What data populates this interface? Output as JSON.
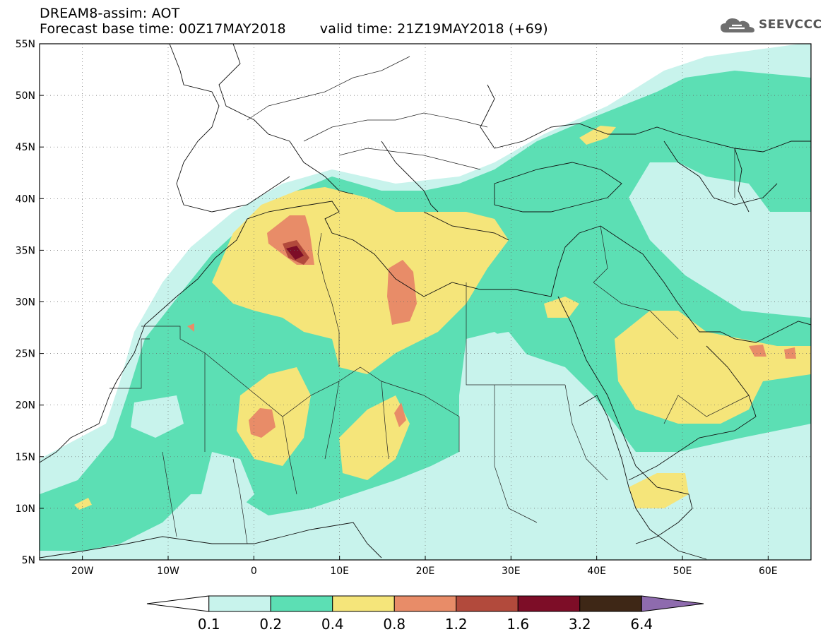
{
  "header": {
    "title": "DREAM8-assim: AOT",
    "base_time": "Forecast base time: 00Z17MAY2018",
    "valid_time": "valid time: 21Z19MAY2018 (+69)"
  },
  "logo": {
    "text": "SEEVCCC",
    "icon": "cloud-icon"
  },
  "map": {
    "lat_labels": [
      "55N",
      "50N",
      "45N",
      "40N",
      "35N",
      "30N",
      "25N",
      "20N",
      "15N",
      "10N",
      "5N"
    ],
    "lon_labels": [
      "20W",
      "10W",
      "0",
      "10E",
      "20E",
      "30E",
      "40E",
      "50E",
      "60E"
    ],
    "lon_range": [
      -25,
      65
    ],
    "lat_range": [
      5,
      55
    ],
    "gridlines": "dotted"
  },
  "legend": {
    "values": [
      "0.1",
      "0.2",
      "0.4",
      "0.8",
      "1.2",
      "1.6",
      "3.2",
      "6.4"
    ],
    "colors": [
      "#ffffff",
      "#c8f3ec",
      "#5cdfb4",
      "#f5e57a",
      "#e88c68",
      "#b24a3c",
      "#7d0d27",
      "#3e2716",
      "#8e6bae"
    ]
  }
}
